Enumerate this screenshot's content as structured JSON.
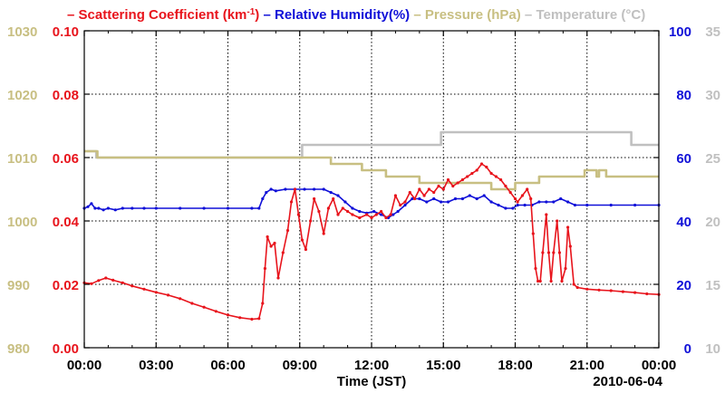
{
  "chart_data": {
    "type": "line",
    "legend": [
      {
        "name": "Scattering Coefficient (km",
        "sup": "-1",
        "suffix": ")",
        "color": "#e8141c"
      },
      {
        "name": "Relative Humidity(%)",
        "color": "#1010d8"
      },
      {
        "name": "Pressure (hPa)",
        "color": "#c8bf82"
      },
      {
        "name": "Temperature (",
        "deg": "°",
        "suffix": "C)",
        "color": "#c0c0c0"
      }
    ],
    "xlabel": "Time (JST)",
    "date_label": "2010-06-04",
    "x_ticks": [
      "00:00",
      "03:00",
      "06:00",
      "09:00",
      "12:00",
      "15:00",
      "18:00",
      "21:00",
      "00:00"
    ],
    "xlim_hours": [
      0,
      24
    ],
    "axes": {
      "scattering": {
        "range": [
          0,
          0.1
        ],
        "ticks": [
          "0.00",
          "0.02",
          "0.04",
          "0.06",
          "0.08",
          "0.10"
        ],
        "color": "#e8141c",
        "side": "left-inner"
      },
      "pressure": {
        "range": [
          980,
          1030
        ],
        "ticks": [
          "980",
          "990",
          "1000",
          "1010",
          "1020",
          "1030"
        ],
        "color": "#c8bf82",
        "side": "left-outer"
      },
      "humidity": {
        "range": [
          0,
          100
        ],
        "ticks": [
          "0",
          "20",
          "40",
          "60",
          "80",
          "100"
        ],
        "color": "#1010d8",
        "side": "right-inner"
      },
      "temperature": {
        "range": [
          10,
          35
        ],
        "ticks": [
          "10",
          "15",
          "20",
          "25",
          "30",
          "35"
        ],
        "color": "#c0c0c0",
        "side": "right-outer"
      }
    },
    "series": [
      {
        "name": "Scattering Coefficient",
        "axis": "scattering",
        "color": "#e8141c",
        "markers": true,
        "points": [
          [
            0.0,
            0.0205
          ],
          [
            0.3,
            0.0202
          ],
          [
            0.6,
            0.0212
          ],
          [
            0.9,
            0.022
          ],
          [
            1.2,
            0.0213
          ],
          [
            1.6,
            0.0205
          ],
          [
            2.0,
            0.0195
          ],
          [
            2.5,
            0.0185
          ],
          [
            3.0,
            0.0175
          ],
          [
            3.5,
            0.0166
          ],
          [
            4.0,
            0.0155
          ],
          [
            4.5,
            0.014
          ],
          [
            5.0,
            0.0128
          ],
          [
            5.5,
            0.0115
          ],
          [
            6.0,
            0.0103
          ],
          [
            6.5,
            0.0095
          ],
          [
            7.0,
            0.009
          ],
          [
            7.3,
            0.0092
          ],
          [
            7.45,
            0.014
          ],
          [
            7.55,
            0.025
          ],
          [
            7.65,
            0.035
          ],
          [
            7.8,
            0.032
          ],
          [
            7.95,
            0.033
          ],
          [
            8.1,
            0.022
          ],
          [
            8.3,
            0.03
          ],
          [
            8.5,
            0.037
          ],
          [
            8.65,
            0.046
          ],
          [
            8.8,
            0.05
          ],
          [
            8.95,
            0.042
          ],
          [
            9.1,
            0.034
          ],
          [
            9.25,
            0.031
          ],
          [
            9.45,
            0.04
          ],
          [
            9.6,
            0.047
          ],
          [
            9.8,
            0.043
          ],
          [
            10.0,
            0.036
          ],
          [
            10.2,
            0.044
          ],
          [
            10.4,
            0.047
          ],
          [
            10.6,
            0.042
          ],
          [
            10.8,
            0.044
          ],
          [
            11.0,
            0.043
          ],
          [
            11.2,
            0.042
          ],
          [
            11.5,
            0.041
          ],
          [
            11.8,
            0.042
          ],
          [
            12.0,
            0.041
          ],
          [
            12.2,
            0.042
          ],
          [
            12.4,
            0.043
          ],
          [
            12.6,
            0.041
          ],
          [
            12.8,
            0.042
          ],
          [
            13.0,
            0.048
          ],
          [
            13.2,
            0.045
          ],
          [
            13.4,
            0.046
          ],
          [
            13.6,
            0.049
          ],
          [
            13.8,
            0.047
          ],
          [
            14.0,
            0.05
          ],
          [
            14.2,
            0.048
          ],
          [
            14.4,
            0.05
          ],
          [
            14.6,
            0.049
          ],
          [
            14.8,
            0.051
          ],
          [
            15.0,
            0.05
          ],
          [
            15.2,
            0.053
          ],
          [
            15.4,
            0.051
          ],
          [
            15.6,
            0.052
          ],
          [
            15.8,
            0.053
          ],
          [
            16.0,
            0.054
          ],
          [
            16.2,
            0.055
          ],
          [
            16.4,
            0.056
          ],
          [
            16.6,
            0.058
          ],
          [
            16.8,
            0.057
          ],
          [
            17.0,
            0.055
          ],
          [
            17.2,
            0.054
          ],
          [
            17.4,
            0.053
          ],
          [
            17.6,
            0.051
          ],
          [
            17.8,
            0.049
          ],
          [
            18.0,
            0.047
          ],
          [
            18.1,
            0.046
          ],
          [
            18.3,
            0.048
          ],
          [
            18.5,
            0.05
          ],
          [
            18.65,
            0.047
          ],
          [
            18.75,
            0.036
          ],
          [
            18.85,
            0.025
          ],
          [
            18.95,
            0.021
          ],
          [
            19.05,
            0.021
          ],
          [
            19.15,
            0.03
          ],
          [
            19.3,
            0.042
          ],
          [
            19.4,
            0.03
          ],
          [
            19.5,
            0.021
          ],
          [
            19.6,
            0.03
          ],
          [
            19.75,
            0.04
          ],
          [
            19.85,
            0.03
          ],
          [
            19.95,
            0.021
          ],
          [
            20.1,
            0.025
          ],
          [
            20.2,
            0.038
          ],
          [
            20.3,
            0.032
          ],
          [
            20.45,
            0.02
          ],
          [
            20.6,
            0.019
          ],
          [
            21.0,
            0.0185
          ],
          [
            21.5,
            0.0182
          ],
          [
            22.0,
            0.018
          ],
          [
            22.5,
            0.0177
          ],
          [
            23.0,
            0.0174
          ],
          [
            23.5,
            0.017
          ],
          [
            24.0,
            0.0168
          ]
        ]
      },
      {
        "name": "Relative Humidity",
        "axis": "humidity",
        "color": "#1010d8",
        "markers": true,
        "points": [
          [
            0.0,
            44
          ],
          [
            0.15,
            44.5
          ],
          [
            0.3,
            45.5
          ],
          [
            0.45,
            44
          ],
          [
            0.6,
            44
          ],
          [
            0.8,
            43.5
          ],
          [
            1.0,
            44
          ],
          [
            1.3,
            43.5
          ],
          [
            1.6,
            44
          ],
          [
            2.0,
            44
          ],
          [
            2.5,
            44
          ],
          [
            3.0,
            44
          ],
          [
            4.0,
            44
          ],
          [
            5.0,
            44
          ],
          [
            6.0,
            44
          ],
          [
            7.0,
            44
          ],
          [
            7.3,
            44
          ],
          [
            7.45,
            47
          ],
          [
            7.6,
            49
          ],
          [
            7.8,
            50
          ],
          [
            8.0,
            49.5
          ],
          [
            8.4,
            50
          ],
          [
            8.8,
            50
          ],
          [
            9.2,
            50
          ],
          [
            9.6,
            50
          ],
          [
            10.0,
            50
          ],
          [
            10.3,
            49
          ],
          [
            10.6,
            48
          ],
          [
            10.9,
            46
          ],
          [
            11.2,
            44
          ],
          [
            11.5,
            43
          ],
          [
            11.8,
            42.5
          ],
          [
            12.1,
            43
          ],
          [
            12.4,
            42
          ],
          [
            12.7,
            41
          ],
          [
            12.9,
            42
          ],
          [
            13.1,
            43
          ],
          [
            13.4,
            45
          ],
          [
            13.7,
            47
          ],
          [
            14.0,
            47
          ],
          [
            14.3,
            46
          ],
          [
            14.6,
            47
          ],
          [
            14.9,
            46
          ],
          [
            15.2,
            46
          ],
          [
            15.5,
            47
          ],
          [
            15.8,
            47
          ],
          [
            16.1,
            48
          ],
          [
            16.4,
            47
          ],
          [
            16.7,
            48
          ],
          [
            17.0,
            46
          ],
          [
            17.3,
            45
          ],
          [
            17.6,
            44
          ],
          [
            17.9,
            44
          ],
          [
            18.1,
            45
          ],
          [
            18.4,
            45
          ],
          [
            18.7,
            45
          ],
          [
            19.0,
            46
          ],
          [
            19.3,
            46
          ],
          [
            19.6,
            46
          ],
          [
            19.9,
            47
          ],
          [
            20.2,
            46
          ],
          [
            20.5,
            45
          ],
          [
            21.0,
            45
          ],
          [
            22.0,
            45
          ],
          [
            23.0,
            45
          ],
          [
            24.0,
            45
          ]
        ]
      },
      {
        "name": "Pressure",
        "axis": "pressure",
        "color": "#c8bf82",
        "markers": false,
        "points": [
          [
            0.0,
            1011
          ],
          [
            0.55,
            1011
          ],
          [
            0.55,
            1010
          ],
          [
            10.3,
            1010
          ],
          [
            10.3,
            1009
          ],
          [
            11.6,
            1009
          ],
          [
            11.6,
            1008
          ],
          [
            12.6,
            1008
          ],
          [
            12.6,
            1007
          ],
          [
            14.0,
            1007
          ],
          [
            14.0,
            1006
          ],
          [
            17.0,
            1006
          ],
          [
            17.0,
            1005
          ],
          [
            18.0,
            1005
          ],
          [
            18.0,
            1006
          ],
          [
            19.0,
            1006
          ],
          [
            19.0,
            1007
          ],
          [
            20.0,
            1007
          ],
          [
            20.0,
            1007
          ],
          [
            20.2,
            1007
          ],
          [
            20.2,
            1007
          ],
          [
            20.9,
            1007
          ],
          [
            20.9,
            1008
          ],
          [
            21.4,
            1008
          ],
          [
            21.4,
            1007
          ],
          [
            21.5,
            1007
          ],
          [
            21.5,
            1008
          ],
          [
            21.8,
            1008
          ],
          [
            21.8,
            1007
          ],
          [
            24.0,
            1007
          ]
        ]
      },
      {
        "name": "Temperature",
        "axis": "temperature",
        "color": "#c0c0c0",
        "markers": false,
        "points": [
          [
            0.0,
            25.5
          ],
          [
            0.5,
            25.5
          ],
          [
            0.5,
            25
          ],
          [
            9.1,
            25
          ],
          [
            9.1,
            26
          ],
          [
            14.9,
            26
          ],
          [
            14.9,
            27
          ],
          [
            22.85,
            27
          ],
          [
            22.85,
            26
          ],
          [
            24.0,
            26
          ]
        ]
      }
    ]
  }
}
